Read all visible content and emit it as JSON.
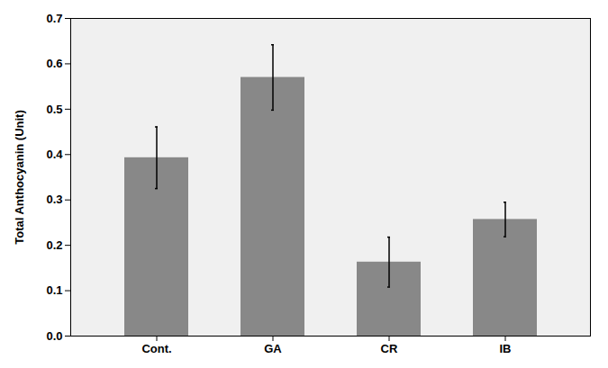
{
  "chart_data": {
    "type": "bar",
    "ylabel": "Total Anthocyanin (Unit)",
    "categories": [
      "Cont.",
      "GA",
      "CR",
      "IB"
    ],
    "values": [
      0.393,
      0.57,
      0.163,
      0.257
    ],
    "errors": [
      0.068,
      0.072,
      0.055,
      0.038
    ],
    "color": "#888888",
    "ylim": [
      0,
      0.7
    ],
    "yticks": [
      {
        "value": 0,
        "label": "0.0"
      },
      0.1,
      0.2,
      0.3,
      0.4,
      0.5,
      0.6,
      0.7
    ],
    "grid": false
  }
}
